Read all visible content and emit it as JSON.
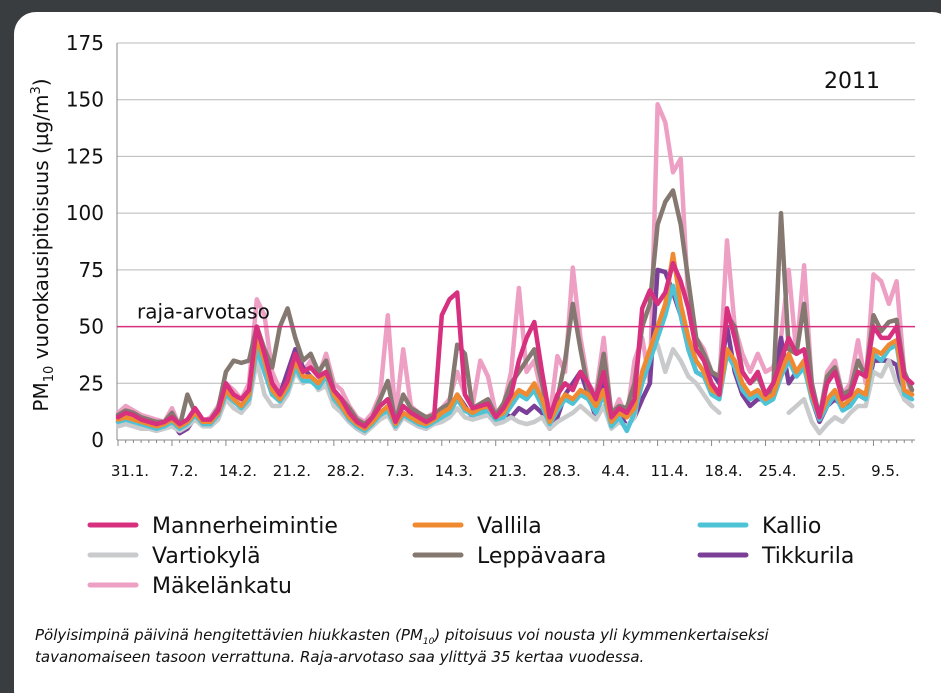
{
  "chart_data": {
    "type": "line",
    "y_label": {
      "pre": "PM",
      "sub": "10",
      "mid": " vuorokausipitoisuus (µg/m",
      "sup": "3",
      "post": ")"
    },
    "annotation": "2011",
    "reference_line": {
      "label": "raja-arvotaso",
      "value": 50,
      "color": "#d6307f"
    },
    "ylim": [
      0,
      175
    ],
    "yticks": [
      0,
      25,
      50,
      75,
      100,
      125,
      150,
      175
    ],
    "grid": true,
    "categories": [
      "31.1.",
      null,
      null,
      null,
      null,
      null,
      null,
      "7.2.",
      null,
      null,
      null,
      null,
      null,
      null,
      "14.2.",
      null,
      null,
      null,
      null,
      null,
      null,
      "21.2.",
      null,
      null,
      null,
      null,
      null,
      null,
      "28.2.",
      null,
      null,
      null,
      null,
      null,
      null,
      "7.3.",
      null,
      null,
      null,
      null,
      null,
      null,
      "14.3.",
      null,
      null,
      null,
      null,
      null,
      null,
      "21.3.",
      null,
      null,
      null,
      null,
      null,
      null,
      "28.3.",
      null,
      null,
      null,
      null,
      null,
      null,
      "4.4.",
      null,
      null,
      null,
      null,
      null,
      null,
      "11.4.",
      null,
      null,
      null,
      null,
      null,
      null,
      "18.4.",
      null,
      null,
      null,
      null,
      null,
      null,
      "25.4.",
      null,
      null,
      null,
      null,
      null,
      null,
      "2.5.",
      null,
      null,
      null,
      null,
      null,
      null,
      "9.5.",
      null,
      null,
      null,
      null,
      null
    ],
    "series": [
      {
        "name": "Mannerheimintie",
        "color": "#d6307f",
        "values": [
          10,
          12,
          11,
          9,
          8,
          7,
          8,
          10,
          7,
          9,
          14,
          9,
          9,
          13,
          25,
          20,
          18,
          22,
          50,
          38,
          25,
          20,
          26,
          38,
          30,
          32,
          28,
          30,
          22,
          18,
          12,
          8,
          6,
          10,
          15,
          18,
          8,
          15,
          12,
          10,
          8,
          10,
          55,
          62,
          65,
          20,
          14,
          15,
          16,
          10,
          14,
          20,
          35,
          45,
          52,
          30,
          10,
          20,
          25,
          22,
          30,
          25,
          18,
          30,
          10,
          14,
          12,
          18,
          58,
          66,
          60,
          65,
          78,
          70,
          58,
          40,
          35,
          25,
          20,
          58,
          45,
          30,
          25,
          30,
          20,
          25,
          35,
          45,
          38,
          40,
          22,
          10,
          25,
          30,
          18,
          20,
          30,
          28,
          50,
          45,
          45,
          50,
          28,
          25
        ]
      },
      {
        "name": "Vallila",
        "color": "#f08a30",
        "values": [
          9,
          10,
          9,
          8,
          7,
          6,
          7,
          9,
          6,
          8,
          12,
          8,
          8,
          12,
          22,
          18,
          15,
          20,
          45,
          35,
          22,
          18,
          24,
          35,
          28,
          28,
          25,
          30,
          20,
          15,
          10,
          7,
          5,
          8,
          12,
          15,
          7,
          12,
          10,
          8,
          7,
          9,
          12,
          14,
          20,
          14,
          12,
          14,
          15,
          10,
          12,
          18,
          22,
          20,
          25,
          18,
          8,
          15,
          20,
          18,
          22,
          20,
          15,
          22,
          8,
          12,
          10,
          14,
          30,
          40,
          50,
          60,
          82,
          60,
          45,
          35,
          30,
          22,
          20,
          40,
          35,
          25,
          20,
          22,
          18,
          20,
          30,
          38,
          30,
          35,
          20,
          10,
          18,
          22,
          15,
          18,
          22,
          20,
          40,
          38,
          42,
          44,
          22,
          20
        ]
      },
      {
        "name": "Kallio",
        "color": "#4fc3d6",
        "values": [
          8,
          9,
          8,
          7,
          6,
          5,
          6,
          8,
          5,
          7,
          11,
          7,
          7,
          11,
          20,
          17,
          14,
          18,
          40,
          30,
          20,
          17,
          22,
          32,
          26,
          26,
          23,
          28,
          18,
          14,
          9,
          6,
          4,
          7,
          11,
          13,
          6,
          11,
          9,
          7,
          6,
          8,
          10,
          12,
          18,
          13,
          11,
          12,
          13,
          9,
          10,
          15,
          20,
          18,
          22,
          15,
          7,
          13,
          18,
          16,
          20,
          18,
          12,
          20,
          6,
          10,
          4,
          12,
          25,
          35,
          45,
          55,
          68,
          55,
          40,
          30,
          28,
          20,
          18,
          38,
          32,
          22,
          18,
          20,
          16,
          18,
          28,
          35,
          28,
          32,
          18,
          9,
          15,
          20,
          13,
          15,
          20,
          18,
          38,
          35,
          40,
          42,
          20,
          18
        ]
      },
      {
        "name": "Vartiokylä",
        "color": "#c8cacc",
        "values": [
          6,
          7,
          6,
          5,
          5,
          4,
          5,
          6,
          4,
          6,
          9,
          6,
          6,
          9,
          18,
          14,
          12,
          16,
          35,
          20,
          15,
          15,
          20,
          30,
          25,
          28,
          22,
          24,
          15,
          12,
          8,
          5,
          3,
          6,
          9,
          11,
          5,
          10,
          8,
          6,
          5,
          7,
          8,
          10,
          14,
          10,
          9,
          10,
          11,
          7,
          8,
          10,
          8,
          7,
          8,
          10,
          5,
          8,
          10,
          12,
          15,
          12,
          9,
          15,
          5,
          8,
          6,
          10,
          30,
          38,
          42,
          30,
          40,
          35,
          28,
          25,
          20,
          15,
          12,
          null,
          null,
          null,
          null,
          null,
          null,
          null,
          null,
          12,
          15,
          18,
          8,
          3,
          7,
          10,
          8,
          12,
          15,
          15,
          30,
          28,
          35,
          25,
          18,
          15
        ]
      },
      {
        "name": "Leppävaara",
        "color": "#857870",
        "values": [
          11,
          13,
          12,
          10,
          9,
          8,
          8,
          12,
          6,
          20,
          12,
          8,
          9,
          14,
          30,
          35,
          34,
          35,
          50,
          40,
          32,
          50,
          58,
          45,
          35,
          38,
          30,
          35,
          22,
          18,
          14,
          9,
          7,
          10,
          18,
          26,
          8,
          20,
          14,
          12,
          10,
          11,
          14,
          16,
          42,
          38,
          14,
          16,
          18,
          11,
          16,
          25,
          30,
          35,
          40,
          25,
          9,
          18,
          35,
          60,
          40,
          22,
          18,
          38,
          12,
          15,
          14,
          25,
          50,
          60,
          95,
          105,
          110,
          95,
          70,
          45,
          38,
          30,
          28,
          55,
          50,
          30,
          25,
          28,
          20,
          22,
          100,
          40,
          38,
          60,
          25,
          10,
          28,
          32,
          20,
          22,
          35,
          28,
          55,
          48,
          52,
          53,
          30,
          22
        ]
      },
      {
        "name": "Tikkurila",
        "color": "#7b3f98",
        "values": [
          8,
          9,
          8,
          7,
          6,
          5,
          6,
          8,
          3,
          5,
          10,
          7,
          7,
          10,
          20,
          18,
          15,
          20,
          48,
          30,
          20,
          20,
          30,
          40,
          32,
          28,
          25,
          30,
          20,
          12,
          8,
          5,
          3,
          8,
          12,
          14,
          5,
          10,
          8,
          6,
          5,
          8,
          10,
          12,
          20,
          15,
          10,
          12,
          14,
          8,
          12,
          10,
          14,
          12,
          15,
          12,
          5,
          10,
          20,
          25,
          30,
          20,
          10,
          25,
          8,
          12,
          6,
          10,
          18,
          25,
          75,
          74,
          65,
          55,
          40,
          30,
          28,
          30,
          25,
          50,
          30,
          20,
          15,
          18,
          18,
          20,
          45,
          25,
          30,
          35,
          18,
          8,
          15,
          18,
          15,
          17,
          20,
          18,
          35,
          35,
          35,
          33,
          18,
          15
        ]
      },
      {
        "name": "Mäkelänkatu",
        "color": "#eea0c4",
        "values": [
          12,
          15,
          13,
          11,
          10,
          9,
          8,
          14,
          6,
          8,
          12,
          8,
          10,
          15,
          25,
          22,
          18,
          25,
          62,
          55,
          30,
          22,
          28,
          40,
          30,
          35,
          28,
          38,
          25,
          22,
          15,
          10,
          8,
          12,
          20,
          55,
          10,
          40,
          15,
          12,
          10,
          12,
          14,
          18,
          30,
          20,
          15,
          35,
          28,
          12,
          15,
          30,
          67,
          30,
          35,
          20,
          10,
          37,
          30,
          76,
          45,
          25,
          20,
          45,
          10,
          18,
          10,
          35,
          45,
          25,
          148,
          140,
          118,
          124,
          60,
          45,
          40,
          30,
          25,
          88,
          50,
          38,
          30,
          38,
          30,
          32,
          45,
          75,
          38,
          77,
          25,
          10,
          30,
          35,
          20,
          25,
          44,
          25,
          73,
          70,
          60,
          70,
          30,
          20
        ]
      }
    ],
    "caption": {
      "line1_pre": "Pölyisimpinä päivinä hengitettävien hiukkasten (PM",
      "line1_sub": "10",
      "line1_post": ") pitoisuus voi nousta yli kymmenkertaiseksi",
      "line2": "tavanomaiseen tasoon verrattuna. Raja-arvotaso saa ylittyä 35 kertaa vuodessa."
    }
  }
}
